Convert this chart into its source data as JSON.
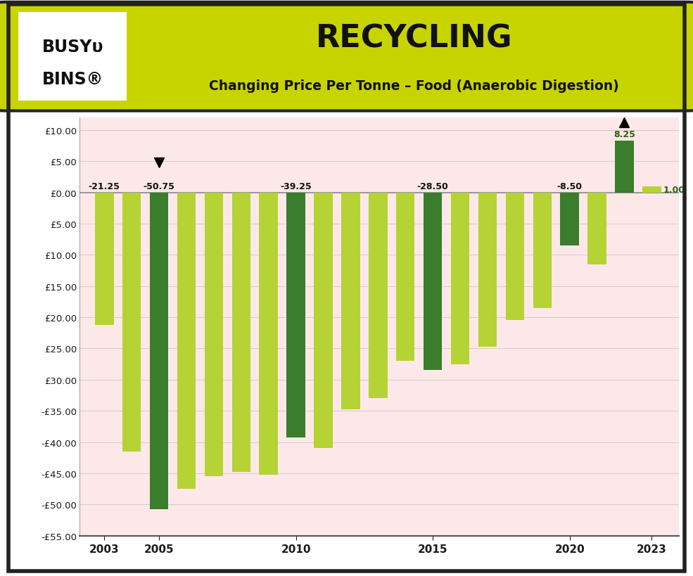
{
  "years": [
    2003,
    2004,
    2005,
    2006,
    2007,
    2008,
    2009,
    2010,
    2011,
    2012,
    2013,
    2014,
    2015,
    2016,
    2017,
    2018,
    2019,
    2020,
    2021,
    2022,
    2023
  ],
  "values": [
    -21.25,
    -41.5,
    -50.75,
    -47.5,
    -45.5,
    -44.75,
    -45.25,
    -39.25,
    -41.0,
    -34.75,
    -33.0,
    -27.0,
    -28.5,
    -27.5,
    -24.75,
    -20.5,
    -18.5,
    -8.5,
    -11.5,
    8.25,
    1.0
  ],
  "bar_colors": [
    "#b5d334",
    "#b5d334",
    "#3a7d2c",
    "#b5d334",
    "#b5d334",
    "#b5d334",
    "#b5d334",
    "#3a7d2c",
    "#b5d334",
    "#b5d334",
    "#b5d334",
    "#b5d334",
    "#3a7d2c",
    "#b5d334",
    "#b5d334",
    "#b5d334",
    "#b5d334",
    "#3a7d2c",
    "#b5d334",
    "#3a7d2c",
    "#b5d334"
  ],
  "label_years": [
    2003,
    2005,
    2010,
    2015,
    2020,
    2022,
    2023
  ],
  "label_values": [
    -21.25,
    -50.75,
    -39.25,
    -28.5,
    -8.5,
    8.25,
    1.0
  ],
  "label_texts": [
    "-21.25",
    "-50.75",
    "-39.25",
    "-28.50",
    "-8.50",
    "8.25",
    "1.00"
  ],
  "down_arrow_year": 2005,
  "up_arrow_year": 2022,
  "title": "RECYCLING",
  "subtitle": "Changing Price Per Tonne – Food (Anaerobic Digestion)",
  "ylim_min": -55,
  "ylim_max": 12,
  "yticks": [
    10,
    5,
    0,
    -5,
    -10,
    -15,
    -20,
    -25,
    -30,
    -35,
    -40,
    -45,
    -50,
    -55
  ],
  "xticks": [
    2003,
    2005,
    2010,
    2015,
    2020,
    2023
  ],
  "background_color": "#fce8e8",
  "header_color": "#c8d400",
  "bar_width": 0.68,
  "xlim_min": 2002.1,
  "xlim_max": 2024.0
}
